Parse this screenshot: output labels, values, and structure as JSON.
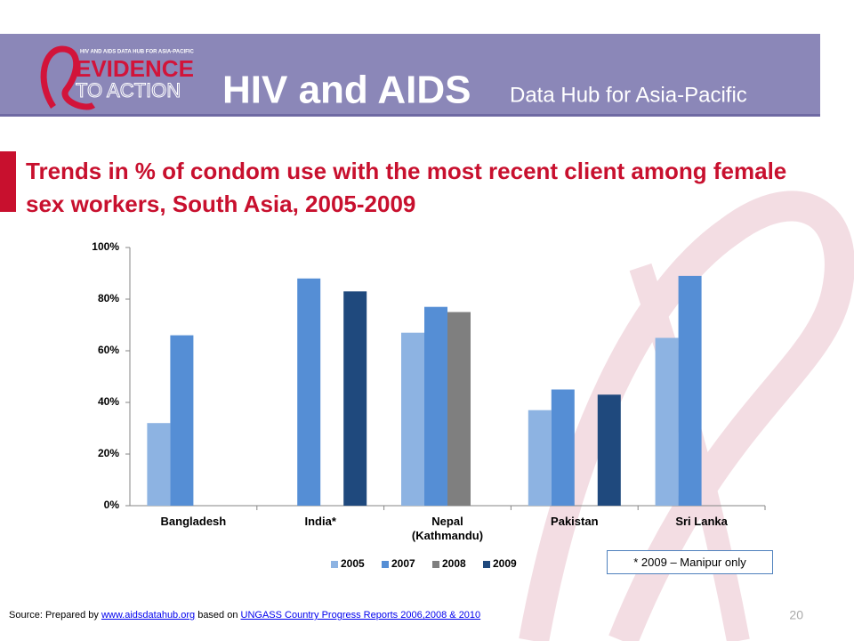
{
  "header": {
    "logo_small": "HIV AND AIDS DATA HUB FOR ASIA-PACIFIC",
    "logo_top": "EVIDENCE",
    "logo_bottom": "TO ACTION",
    "title": "HIV and AIDS",
    "subtitle": "Data Hub for Asia-Pacific"
  },
  "chart_data": {
    "type": "bar",
    "title": "Trends in % of condom use with the most recent client among female sex workers, South Asia, 2005-2009",
    "categories": [
      "Bangladesh",
      "India*",
      "Nepal (Kathmandu)",
      "Pakistan",
      "Sri Lanka"
    ],
    "series": [
      {
        "name": "2005",
        "color": "#8db3e2",
        "values": [
          32,
          null,
          67,
          37,
          65
        ]
      },
      {
        "name": "2007",
        "color": "#558ed5",
        "values": [
          66,
          88,
          77,
          45,
          89
        ]
      },
      {
        "name": "2008",
        "color": "#7f7f7f",
        "values": [
          null,
          null,
          75,
          null,
          null
        ]
      },
      {
        "name": "2009",
        "color": "#1f497d",
        "values": [
          null,
          83,
          null,
          43,
          null
        ]
      }
    ],
    "ylim": [
      0,
      100
    ],
    "yticks": [
      {
        "value": 0,
        "label": "0%"
      },
      {
        "value": 20,
        "label": "20%"
      },
      {
        "value": 40,
        "label": "40%"
      },
      {
        "value": 60,
        "label": "60%"
      },
      {
        "value": 80,
        "label": "80%"
      },
      {
        "value": 100,
        "label": "100%"
      }
    ],
    "legend": "bottom",
    "annotations": [
      "* 2009 – Manipur only"
    ]
  },
  "footer": {
    "source_prefix": "Source: Prepared by ",
    "source_link1": "www.aidsdatahub.org",
    "source_mid": " based on ",
    "source_link2": "UNGASS Country Progress Reports 2006,2008 & 2010",
    "page_number": "20"
  }
}
